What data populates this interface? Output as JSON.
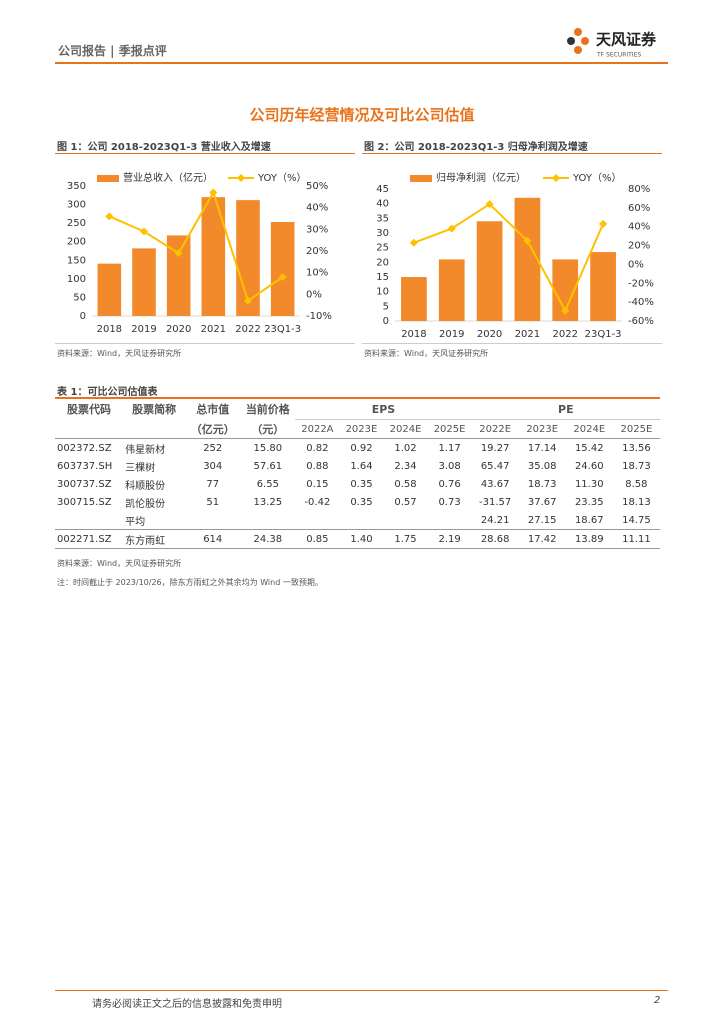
{
  "header": {
    "report_type": "公司报告 | 季报点评",
    "brand": "天风证券",
    "brand_en": "TF SECURITIES"
  },
  "section_title": "公司历年经营情况及可比公司估值",
  "chart_data": [
    {
      "type": "combo",
      "title": "图 1：公司 2018-2023Q1-3 营业收入及增速",
      "source": "资料来源：Wind，天风证券研究所",
      "categories": [
        "2018",
        "2019",
        "2020",
        "2021",
        "2022",
        "23Q1-3"
      ],
      "series": [
        {
          "name": "营业总收入（亿元）",
          "color": "#f28a2b",
          "values": [
            141,
            182,
            217,
            320,
            312,
            253
          ]
        },
        {
          "name": "YOY（%）",
          "color": "#ffc000",
          "axis": "y2",
          "values": [
            36,
            29,
            19,
            47,
            -3,
            8
          ]
        }
      ],
      "ylim": [
        0,
        350
      ],
      "yticks": [
        0,
        50,
        100,
        150,
        200,
        250,
        300,
        350
      ],
      "y2lim": [
        -10,
        50
      ],
      "y2ticks": [
        {
          "value": -10,
          "label": "-10%"
        },
        {
          "value": 0,
          "label": "0%"
        },
        {
          "value": 10,
          "label": "10%"
        },
        {
          "value": 20,
          "label": "20%"
        },
        {
          "value": 30,
          "label": "30%"
        },
        {
          "value": 40,
          "label": "40%"
        },
        {
          "value": 50,
          "label": "50%"
        }
      ],
      "legend": "top"
    },
    {
      "type": "combo",
      "title": "图 2：公司 2018-2023Q1-3 归母净利润及增速",
      "source": "资料来源：Wind，天风证券研究所",
      "categories": [
        "2018",
        "2019",
        "2020",
        "2021",
        "2022",
        "23Q1-3"
      ],
      "series": [
        {
          "name": "归母净利润（亿元）",
          "color": "#f28a2b",
          "values": [
            15,
            21,
            34,
            42,
            21,
            23.5
          ]
        },
        {
          "name": "YOY（%）",
          "color": "#ffc000",
          "axis": "y2",
          "values": [
            23,
            38,
            64,
            25,
            -49,
            43
          ]
        }
      ],
      "ylim": [
        0,
        45
      ],
      "yticks": [
        0,
        5,
        10,
        15,
        20,
        25,
        30,
        35,
        40,
        45
      ],
      "y2lim": [
        -60,
        80
      ],
      "y2ticks": [
        {
          "value": -60,
          "label": "-60%"
        },
        {
          "value": -40,
          "label": "-40%"
        },
        {
          "value": -20,
          "label": "-20%"
        },
        {
          "value": 0,
          "label": "0%"
        },
        {
          "value": 20,
          "label": "20%"
        },
        {
          "value": 40,
          "label": "40%"
        },
        {
          "value": 60,
          "label": "60%"
        },
        {
          "value": 80,
          "label": "80%"
        }
      ],
      "legend": "top"
    }
  ],
  "table": {
    "title": "表 1：可比公司估值表",
    "header": [
      "股票代码",
      "股票简称",
      "总市值",
      "当前价格",
      "EPS",
      "PE"
    ],
    "units": [
      "（亿元）",
      "（元）"
    ],
    "eps_years": [
      "2022A",
      "2023E",
      "2024E",
      "2025E"
    ],
    "pe_years": [
      "2022E",
      "2023E",
      "2024E",
      "2025E"
    ],
    "rows": [
      {
        "code": "002372.SZ",
        "name": "伟星新材",
        "cap": "252",
        "price": "15.80",
        "eps": [
          "0.82",
          "0.92",
          "1.02",
          "1.17"
        ],
        "pe": [
          "19.27",
          "17.14",
          "15.42",
          "13.56"
        ]
      },
      {
        "code": "603737.SH",
        "name": "三棵树",
        "cap": "304",
        "price": "57.61",
        "eps": [
          "0.88",
          "1.64",
          "2.34",
          "3.08"
        ],
        "pe": [
          "65.47",
          "35.08",
          "24.60",
          "18.73"
        ]
      },
      {
        "code": "300737.SZ",
        "name": "科顺股份",
        "cap": "77",
        "price": "6.55",
        "eps": [
          "0.15",
          "0.35",
          "0.58",
          "0.76"
        ],
        "pe": [
          "43.67",
          "18.73",
          "11.30",
          "8.58"
        ]
      },
      {
        "code": "300715.SZ",
        "name": "凯伦股份",
        "cap": "51",
        "price": "13.25",
        "eps": [
          "-0.42",
          "0.35",
          "0.57",
          "0.73"
        ],
        "pe": [
          "-31.57",
          "37.67",
          "23.35",
          "18.13"
        ]
      },
      {
        "name": "平均",
        "pe": [
          "24.21",
          "27.15",
          "18.67",
          "14.75"
        ]
      },
      {
        "code": "002271.SZ",
        "name": "东方雨虹",
        "cap": "614",
        "price": "24.38",
        "eps": [
          "0.85",
          "1.40",
          "1.75",
          "2.19"
        ],
        "pe": [
          "28.68",
          "17.42",
          "13.89",
          "11.11"
        ]
      }
    ],
    "source": "资料来源：Wind，天风证券研究所",
    "note": "注：时间截止于 2023/10/26，除东方雨虹之外其余均为 Wind 一致预期。"
  },
  "footer": {
    "disclaimer": "请务必阅读正文之后的信息披露和免责申明",
    "page": "2"
  }
}
